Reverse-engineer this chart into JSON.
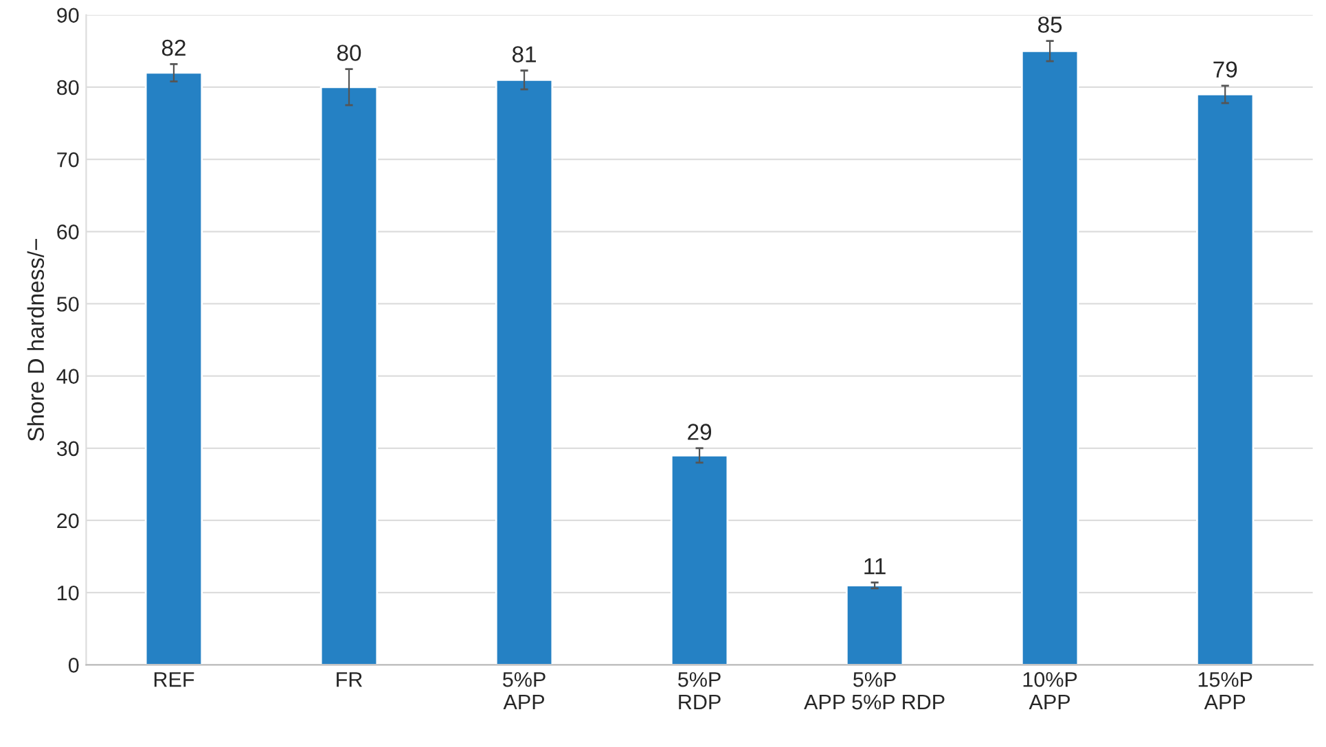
{
  "chart_data": {
    "type": "bar",
    "ylabel": "Shore D hardness/−",
    "categories": [
      "REF",
      "FR",
      "5%P\nAPP",
      "5%P\nRDP",
      "5%P\nAPP 5%P RDP",
      "10%P\nAPP",
      "15%P\nAPP"
    ],
    "values": [
      82,
      80,
      81,
      29,
      11,
      85,
      79
    ],
    "errors": [
      1.2,
      2.5,
      1.3,
      1.0,
      0.4,
      1.4,
      1.2
    ],
    "color": "#2581c4",
    "ylim": [
      0,
      90
    ],
    "yticks": [
      0,
      10,
      20,
      30,
      40,
      50,
      60,
      70,
      80,
      90
    ],
    "grid": "y",
    "data_labels": true
  }
}
